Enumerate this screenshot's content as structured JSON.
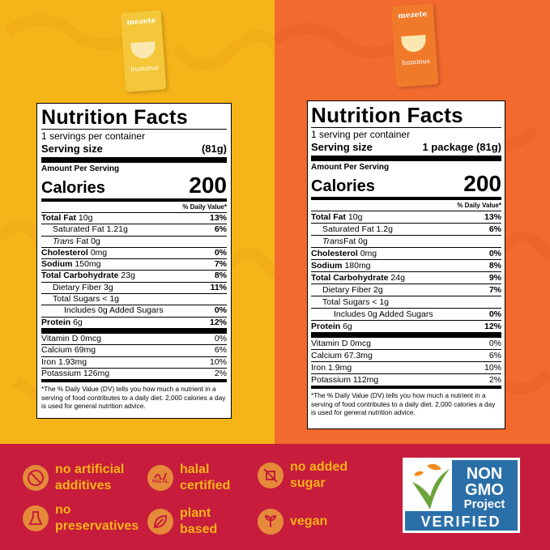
{
  "colors": {
    "left_bg": "#F5B418",
    "right_bg": "#F26A2E",
    "bottom_bg": "#C71C3C",
    "claim_text": "#F5B418",
    "icon_bg": "#E48A3A",
    "ngmo_blue": "#2A6FA8",
    "ngmo_green": "#6BA43A",
    "ngmo_orange": "#F28B1E"
  },
  "packages": {
    "left": {
      "brand": "mezete",
      "product": "hummus"
    },
    "right": {
      "brand": "mezete",
      "product": "hummus"
    }
  },
  "labels": {
    "left": {
      "title": "Nutrition Facts",
      "servings": "1 servings per container",
      "serving_label": "Serving size",
      "serving_value": "(81g)",
      "amount": "Amount Per Serving",
      "calories_label": "Calories",
      "calories_value": "200",
      "dv_header": "% Daily Value*",
      "rows": [
        {
          "name": "Total Fat",
          "amount": "10g",
          "dv": "13%"
        },
        {
          "name": "Saturated Fat 1.21g",
          "dv": "6%"
        },
        {
          "name": "Trans",
          "name2": "Fat 0g",
          "dv": ""
        },
        {
          "name": "Cholesterol",
          "amount": "0mg",
          "dv": "0%"
        },
        {
          "name": "Sodium",
          "amount": "150mg",
          "dv": "7%"
        },
        {
          "name": "Total Carbohydrate",
          "amount": "23g",
          "dv": "8%"
        },
        {
          "name": "Dietary Fiber 3g",
          "dv": "11%"
        },
        {
          "name": "Total Sugars < 1g",
          "dv": ""
        },
        {
          "name": "Includes 0g Added Sugars",
          "dv": "0%"
        },
        {
          "name": "Protein",
          "amount": "6g",
          "dv": "12%"
        }
      ],
      "vitamins": [
        {
          "name": "Vitamin D 0mcg",
          "dv": "0%"
        },
        {
          "name": "Calcium 69mg",
          "dv": "6%"
        },
        {
          "name": "Iron 1.93mg",
          "dv": "10%"
        },
        {
          "name": "Potassium 126mg",
          "dv": "2%"
        }
      ],
      "footnote": "*The % Daily Value (DV) tells you how much a nutrient in a serving of food contributes to a daily diet. 2,000 calories a day is used for general nutrition advice."
    },
    "right": {
      "title": "Nutrition Facts",
      "servings": "1 serving per container",
      "serving_label": "Serving size",
      "serving_value": "1 package (81g)",
      "amount": "Amount Per Serving",
      "calories_label": "Calories",
      "calories_value": "200",
      "dv_header": "% Daily Value*",
      "rows": [
        {
          "name": "Total Fat",
          "amount": "10g",
          "dv": "13%"
        },
        {
          "name": "Saturated Fat 1.2g",
          "dv": "6%"
        },
        {
          "name": "Trans",
          "name2": "Fat 0g",
          "dv": ""
        },
        {
          "name": "Cholesterol",
          "amount": "0mg",
          "dv": "0%"
        },
        {
          "name": "Sodium",
          "amount": "180mg",
          "dv": "8%"
        },
        {
          "name": "Total Carbohydrate",
          "amount": "24g",
          "dv": "9%"
        },
        {
          "name": "Dietary Fiber 2g",
          "dv": "7%"
        },
        {
          "name": "Total Sugars < 1g",
          "dv": ""
        },
        {
          "name": "Includes 0g Added Sugars",
          "dv": "0%"
        },
        {
          "name": "Protein",
          "amount": "6g",
          "dv": "12%"
        }
      ],
      "vitamins": [
        {
          "name": "Vitamin D 0mcg",
          "dv": "0%"
        },
        {
          "name": "Calcium 67.3mg",
          "dv": "6%"
        },
        {
          "name": "Iron 1.9mg",
          "dv": "10%"
        },
        {
          "name": "Potassium 112mg",
          "dv": "2%"
        }
      ],
      "footnote": "*The % Daily Value (DV) tells you how much a nutrient in a serving of food contributes to a daily diet. 2,000 calories a day is used for general nutrition advice."
    }
  },
  "claims": [
    {
      "icon": "no-artificial-icon",
      "line1": "no artificial",
      "line2": "additives"
    },
    {
      "icon": "halal-icon",
      "line1": "halal",
      "line2": "certified",
      "badge": "HALAL"
    },
    {
      "icon": "no-sugar-icon",
      "line1": "no added",
      "line2": "sugar"
    },
    {
      "icon": "no-preservatives-icon",
      "line1": "no",
      "line2": "preservatives"
    },
    {
      "icon": "leaf-icon",
      "line1": "plant",
      "line2": "based"
    },
    {
      "icon": "vegan-icon",
      "line1": "vegan",
      "line2": ""
    }
  ],
  "ngmo": {
    "line1": "NON",
    "line2": "GMO",
    "line3": "Project",
    "verified": "VERIFIED"
  }
}
